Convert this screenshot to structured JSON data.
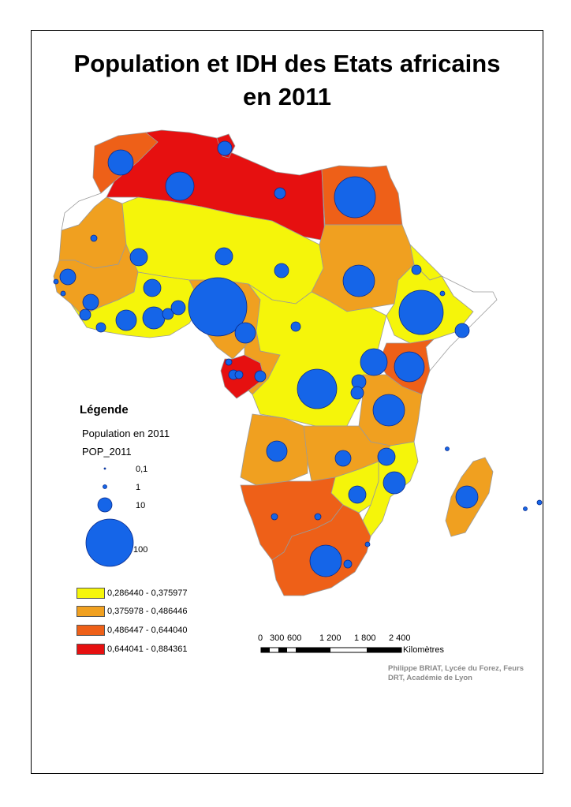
{
  "title": {
    "line1": "Population et IDH des Etats africains",
    "line2": "en 2011"
  },
  "colors": {
    "class1": "#f5f50a",
    "class2": "#f0a020",
    "class3": "#ee6018",
    "class4": "#e61010",
    "circle": "#1565e8",
    "ocean": "#ffffff",
    "border": "#999999"
  },
  "legend": {
    "title": "Légende",
    "population_label": "Population en 2011",
    "field_label": "POP_2011",
    "sizes": [
      {
        "label": "0,1",
        "value": 0.1
      },
      {
        "label": "1",
        "value": 1
      },
      {
        "label": "10",
        "value": 10
      },
      {
        "label": "100",
        "value": 100
      }
    ],
    "classes": [
      {
        "label": "0,286440 - 0,375977",
        "color": "#f5f50a"
      },
      {
        "label": "0,375978 - 0,486446",
        "color": "#f0a020"
      },
      {
        "label": "0,486447 - 0,644040",
        "color": "#ee6018"
      },
      {
        "label": "0,644041 - 0,884361",
        "color": "#e61010"
      }
    ]
  },
  "scalebar": {
    "ticks": [
      "0",
      "300",
      "600",
      "1 200",
      "1 800",
      "2 400"
    ],
    "unit": "Kilomètres"
  },
  "credit": {
    "line1": "Philippe BRIAT, Lycée du Forez, Feurs",
    "line2": "DRT, Académie de Lyon"
  }
}
